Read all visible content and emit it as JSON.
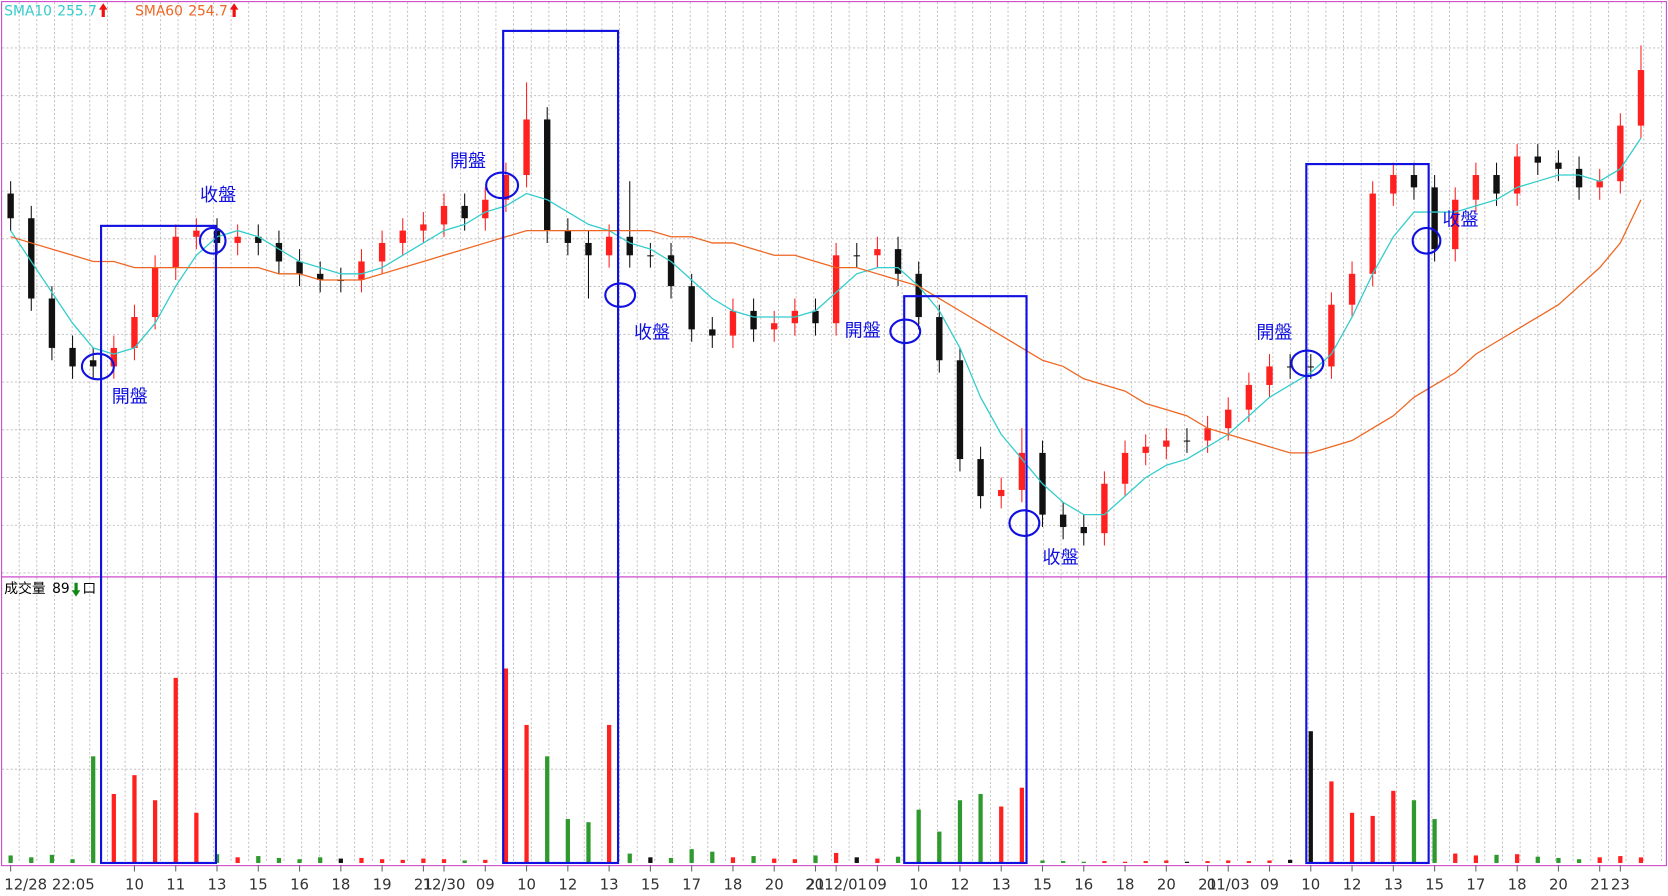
{
  "chart_data": {
    "type": "candlestick",
    "categories": [
      "12/28 22:05",
      null,
      null,
      null,
      null,
      null,
      "10",
      null,
      "11",
      null,
      "13",
      null,
      "15",
      null,
      "16",
      null,
      "18",
      null,
      "19",
      null,
      "21",
      "12/30",
      null,
      "09",
      null,
      "10",
      null,
      "12",
      null,
      "13",
      null,
      "15",
      null,
      "17",
      null,
      "18",
      null,
      "20",
      null,
      "21",
      "2012/01",
      null,
      "09",
      null,
      "10",
      null,
      "12",
      null,
      "13",
      null,
      "15",
      null,
      "16",
      null,
      "18",
      null,
      "20",
      null,
      "21",
      "01/03",
      null,
      "09",
      null,
      "10",
      null,
      "12",
      null,
      "13",
      null,
      "15",
      null,
      "17",
      null,
      "18",
      null,
      "20",
      null,
      "21",
      "23",
      null
    ],
    "open": [
      254.8,
      254.4,
      253.1,
      252.3,
      252.1,
      252.0,
      252.3,
      252.8,
      253.6,
      254.1,
      254.2,
      254.0,
      254.1,
      254.0,
      253.7,
      253.5,
      253.4,
      253.4,
      253.7,
      254.0,
      254.2,
      254.3,
      254.6,
      254.4,
      254.7,
      255.1,
      256.0,
      254.2,
      254.0,
      253.8,
      254.1,
      253.8,
      253.8,
      253.3,
      252.6,
      252.5,
      252.9,
      252.6,
      252.7,
      252.9,
      252.7,
      253.8,
      253.8,
      253.9,
      253.5,
      252.8,
      252.1,
      250.5,
      249.9,
      250.0,
      250.6,
      249.6,
      249.4,
      249.3,
      250.1,
      250.6,
      250.7,
      250.8,
      250.8,
      251.0,
      251.3,
      251.7,
      252.0,
      252.0,
      252.0,
      253.0,
      253.5,
      254.8,
      255.1,
      254.9,
      253.9,
      254.7,
      255.1,
      254.8,
      255.4,
      255.3,
      255.2,
      254.9,
      255.0,
      255.9
    ],
    "high": [
      255.0,
      254.6,
      253.3,
      252.5,
      252.3,
      252.5,
      253.0,
      253.8,
      254.3,
      254.4,
      254.4,
      254.3,
      254.3,
      254.2,
      253.9,
      253.7,
      253.6,
      253.9,
      254.2,
      254.4,
      254.5,
      254.8,
      254.8,
      254.9,
      255.3,
      256.6,
      256.2,
      254.4,
      254.2,
      254.3,
      255.0,
      254.0,
      254.0,
      253.5,
      252.8,
      253.1,
      253.1,
      252.9,
      253.1,
      253.1,
      254.0,
      254.0,
      254.1,
      254.1,
      253.7,
      253.0,
      252.3,
      250.7,
      250.2,
      251.0,
      250.8,
      249.8,
      249.6,
      250.3,
      250.8,
      250.9,
      251.0,
      251.0,
      251.2,
      251.5,
      251.9,
      252.2,
      252.2,
      252.2,
      253.2,
      253.7,
      255.0,
      255.3,
      255.3,
      255.1,
      254.9,
      255.3,
      255.3,
      255.6,
      255.6,
      255.5,
      255.4,
      255.2,
      256.1,
      257.2
    ],
    "low": [
      254.2,
      252.9,
      252.1,
      251.8,
      251.8,
      251.8,
      252.1,
      252.6,
      253.4,
      253.9,
      253.8,
      253.8,
      253.8,
      253.5,
      253.3,
      253.2,
      253.2,
      253.2,
      253.5,
      253.8,
      254.0,
      254.1,
      254.2,
      254.2,
      254.5,
      254.9,
      254.0,
      253.8,
      253.1,
      253.6,
      253.6,
      253.6,
      253.1,
      252.4,
      252.3,
      252.3,
      252.4,
      252.4,
      252.5,
      252.5,
      252.5,
      253.6,
      253.6,
      253.3,
      252.6,
      251.9,
      250.3,
      249.7,
      249.7,
      249.8,
      249.4,
      249.2,
      249.1,
      249.1,
      249.9,
      250.4,
      250.5,
      250.6,
      250.6,
      250.8,
      251.1,
      251.5,
      251.8,
      251.8,
      251.8,
      252.8,
      253.3,
      254.6,
      254.7,
      253.7,
      253.7,
      254.5,
      254.6,
      254.6,
      255.1,
      255.0,
      254.7,
      254.7,
      254.8,
      255.7
    ],
    "close": [
      254.4,
      253.1,
      252.3,
      252.0,
      252.0,
      252.3,
      252.8,
      253.6,
      254.1,
      254.2,
      254.0,
      254.1,
      254.0,
      253.7,
      253.5,
      253.4,
      253.4,
      253.7,
      254.0,
      254.2,
      254.3,
      254.6,
      254.4,
      254.7,
      255.1,
      256.0,
      254.2,
      254.0,
      253.8,
      254.1,
      253.8,
      253.8,
      253.3,
      252.6,
      252.5,
      252.9,
      252.6,
      252.7,
      252.9,
      252.7,
      253.8,
      253.8,
      253.9,
      253.5,
      252.8,
      252.1,
      250.5,
      249.9,
      250.0,
      250.6,
      249.6,
      249.4,
      249.3,
      250.1,
      250.6,
      250.7,
      250.8,
      250.8,
      251.0,
      251.3,
      251.7,
      252.0,
      252.0,
      252.0,
      253.0,
      253.5,
      254.8,
      255.1,
      254.9,
      253.9,
      254.7,
      255.1,
      254.8,
      255.4,
      255.3,
      255.2,
      254.9,
      255.0,
      255.9,
      256.8
    ],
    "up_color": "#ff2020",
    "down_color": "#111111",
    "ylim": [
      248.6,
      257.9
    ],
    "series": [
      {
        "name": "SMA10",
        "color": "#33cccc",
        "values": [
          254.2,
          253.7,
          253.2,
          252.7,
          252.3,
          252.2,
          252.3,
          252.7,
          253.3,
          253.8,
          254.1,
          254.2,
          254.1,
          253.9,
          253.7,
          253.6,
          253.5,
          253.5,
          253.6,
          253.8,
          254.0,
          254.2,
          254.3,
          254.5,
          254.6,
          254.8,
          254.7,
          254.5,
          254.3,
          254.2,
          254.0,
          253.9,
          253.7,
          253.4,
          253.1,
          252.9,
          252.8,
          252.8,
          252.8,
          252.9,
          253.2,
          253.5,
          253.6,
          253.6,
          253.3,
          252.9,
          252.3,
          251.5,
          250.9,
          250.5,
          250.1,
          249.8,
          249.6,
          249.6,
          249.9,
          250.2,
          250.4,
          250.5,
          250.7,
          250.9,
          251.2,
          251.5,
          251.7,
          251.9,
          252.2,
          252.8,
          253.5,
          254.1,
          254.5,
          254.5,
          254.5,
          254.6,
          254.7,
          254.9,
          255.0,
          255.1,
          255.1,
          255.0,
          255.2,
          255.7
        ]
      },
      {
        "name": "SMA60",
        "color": "#ee6622",
        "values": [
          254.1,
          254.0,
          253.9,
          253.8,
          253.7,
          253.7,
          253.6,
          253.6,
          253.6,
          253.6,
          253.6,
          253.6,
          253.6,
          253.5,
          253.5,
          253.4,
          253.4,
          253.4,
          253.5,
          253.6,
          253.7,
          253.8,
          253.9,
          254.0,
          254.1,
          254.2,
          254.2,
          254.2,
          254.2,
          254.2,
          254.2,
          254.2,
          254.1,
          254.1,
          254.0,
          254.0,
          253.9,
          253.8,
          253.8,
          253.7,
          253.6,
          253.6,
          253.5,
          253.4,
          253.3,
          253.1,
          252.9,
          252.7,
          252.5,
          252.3,
          252.1,
          252.0,
          251.8,
          251.7,
          251.6,
          251.4,
          251.3,
          251.2,
          251.0,
          250.9,
          250.8,
          250.7,
          250.6,
          250.6,
          250.7,
          250.8,
          251.0,
          251.2,
          251.5,
          251.7,
          251.9,
          252.2,
          252.4,
          252.6,
          252.8,
          253.0,
          253.3,
          253.6,
          254.0,
          254.7
        ]
      }
    ],
    "volume": {
      "label": "成交量",
      "unit": "口",
      "ylim": [
        0,
        4500
      ],
      "up_color": "#ff2020",
      "down_color": "#2e9a2e",
      "flat_color": "#111111",
      "values": [
        120,
        90,
        130,
        60,
        1700,
        1100,
        1400,
        1000,
        2950,
        800,
        140,
        90,
        110,
        80,
        60,
        90,
        70,
        80,
        60,
        50,
        70,
        60,
        40,
        50,
        3100,
        2200,
        1700,
        700,
        650,
        2200,
        150,
        90,
        80,
        220,
        180,
        90,
        110,
        70,
        60,
        120,
        160,
        90,
        70,
        100,
        850,
        500,
        1000,
        1100,
        900,
        1200,
        40,
        30,
        20,
        30,
        20,
        30,
        40,
        20,
        30,
        40,
        30,
        40,
        50,
        2100,
        1300,
        800,
        750,
        1150,
        1000,
        700,
        150,
        120,
        130,
        140,
        100,
        80,
        60,
        90,
        110,
        89
      ]
    },
    "annotations": [
      "開盤",
      "收盤",
      "開盤",
      "收盤",
      "開盤",
      "收盤",
      "開盤",
      "收盤"
    ]
  }
}
